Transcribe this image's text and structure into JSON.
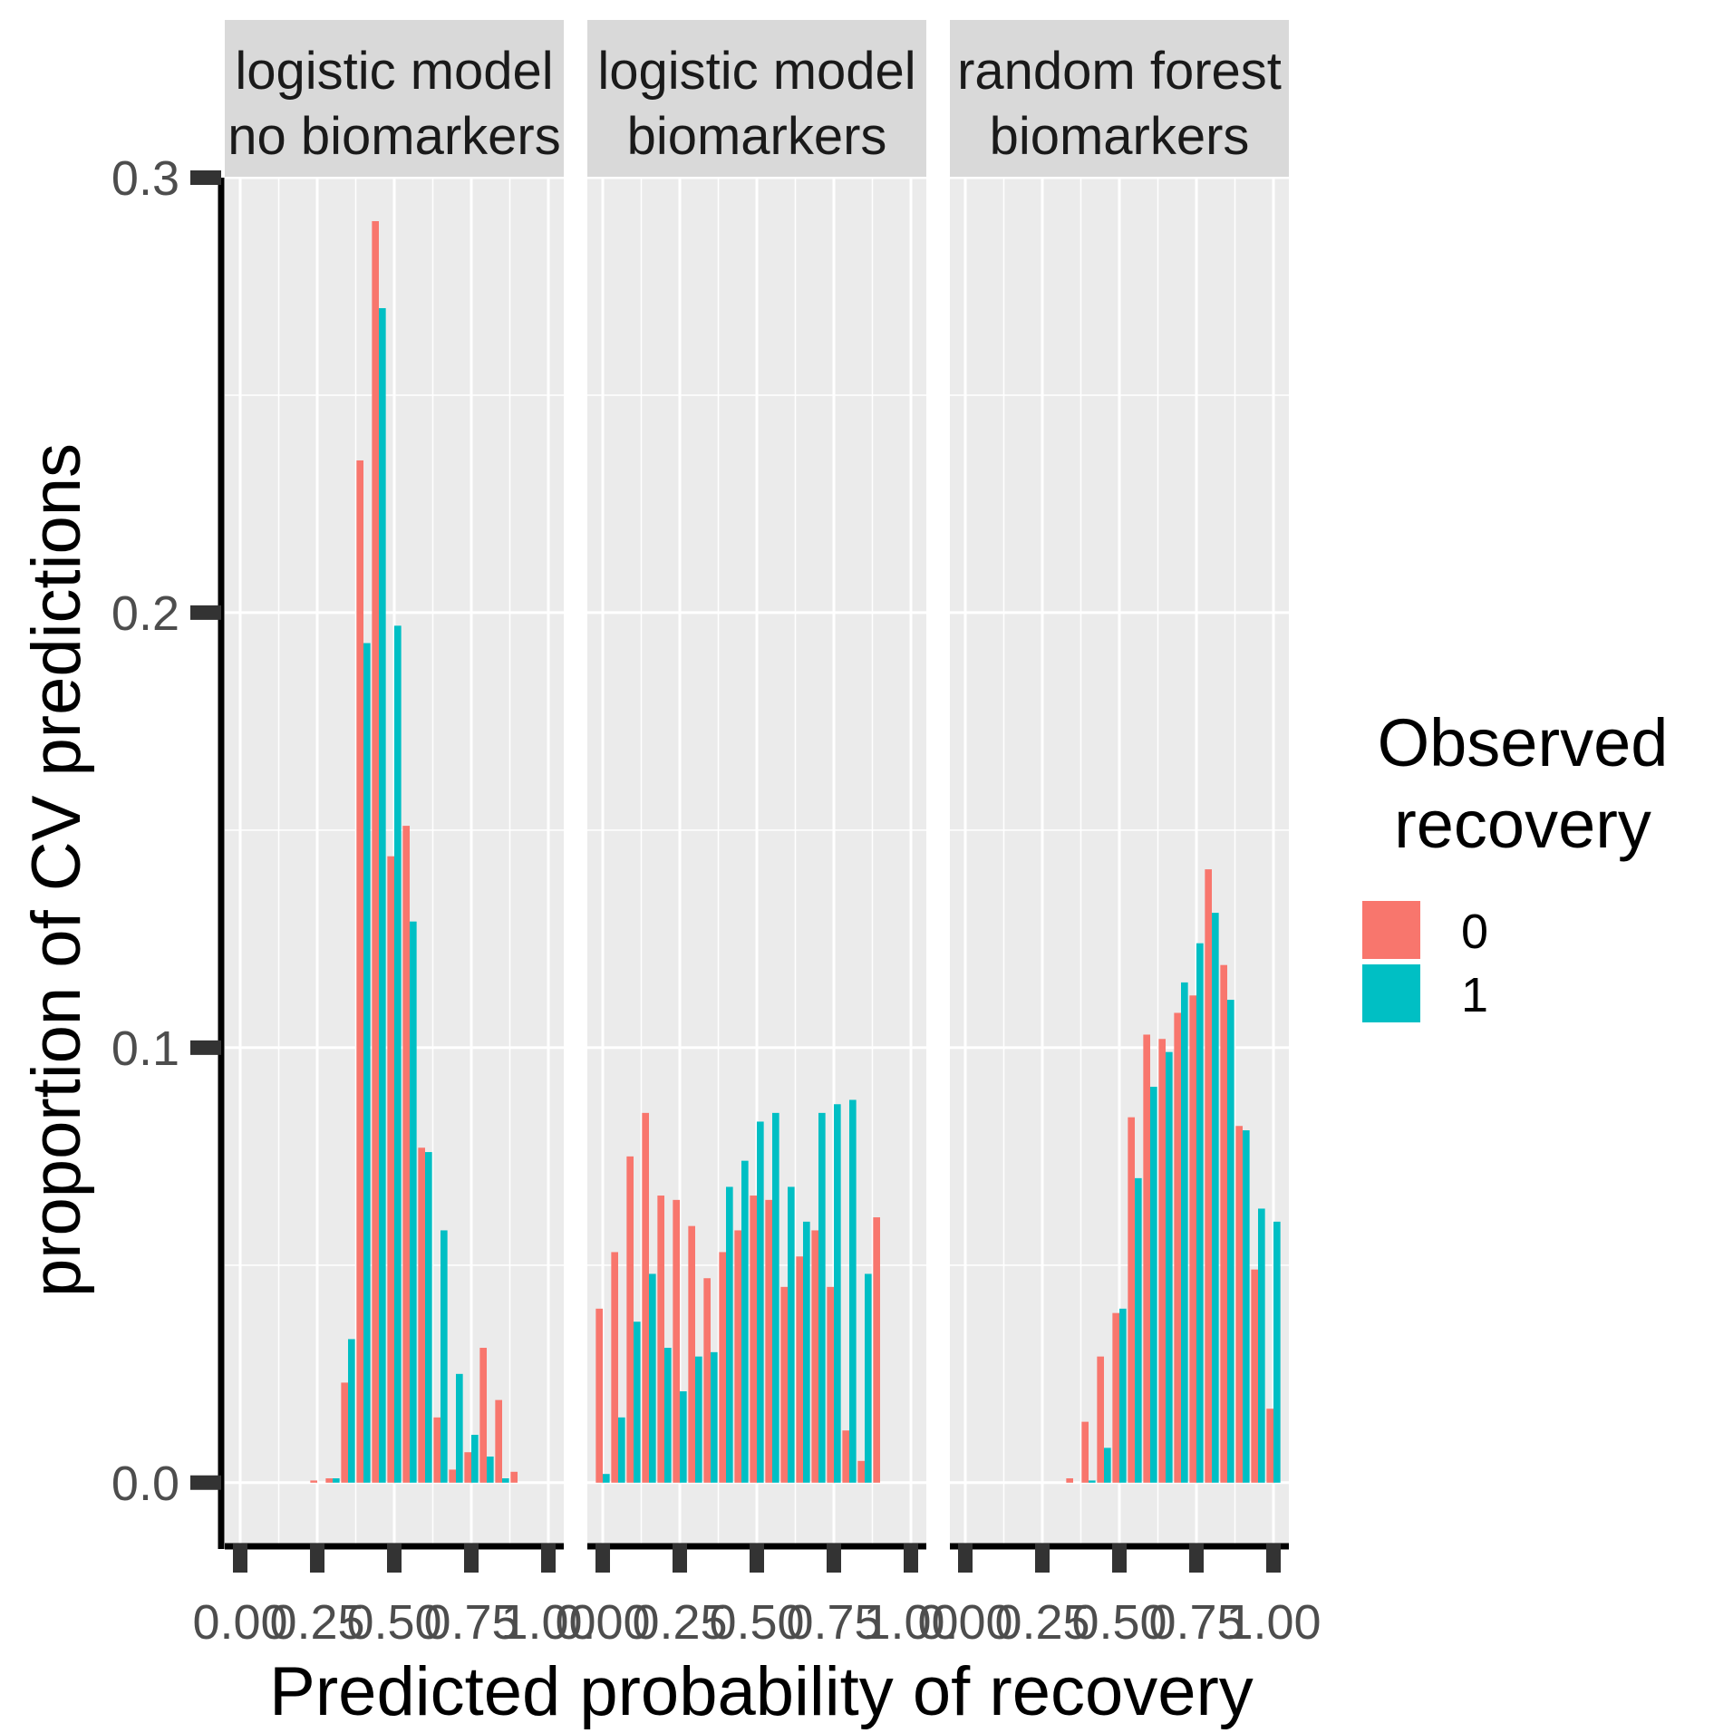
{
  "chart_data": {
    "type": "bar",
    "ylabel": "proportion of CV predictions",
    "xlabel": "Predicted probability of recovery",
    "ylim": [
      -0.014,
      0.3
    ],
    "xlim": [
      -0.05,
      1.05
    ],
    "y_ticks": [
      0.0,
      0.1,
      0.2,
      0.3
    ],
    "y_tick_labels": [
      "0.0",
      "0.1",
      "0.2",
      "0.3"
    ],
    "x_ticks": [
      0.0,
      0.25,
      0.5,
      0.75,
      1.0
    ],
    "x_tick_labels": [
      "0.00",
      "0.25",
      "0.50",
      "0.75",
      "1.00"
    ],
    "bin_centers": [
      0.0,
      0.05,
      0.1,
      0.15,
      0.2,
      0.25,
      0.3,
      0.35,
      0.4,
      0.45,
      0.5,
      0.55,
      0.6,
      0.65,
      0.7,
      0.75,
      0.8,
      0.85,
      0.9,
      0.95,
      1.0
    ],
    "grid": true,
    "legend": {
      "title_lines": [
        "Observed",
        "recovery"
      ],
      "position": "right",
      "entries": [
        {
          "label": "0",
          "color": "#F8766D"
        },
        {
          "label": "1",
          "color": "#00BFC4"
        }
      ]
    },
    "panels": [
      {
        "strip_lines": [
          "logistic model",
          "no biomarkers"
        ],
        "series": [
          {
            "name": "0",
            "color": "#F8766D",
            "values": [
              0,
              0,
              0,
              0,
              0,
              0.0005,
              0.001,
              0.023,
              0.235,
              0.29,
              0.144,
              0.151,
              0.077,
              0.015,
              0.003,
              0.007,
              0.031,
              0.019,
              0.0025,
              0,
              0
            ]
          },
          {
            "name": "1",
            "color": "#00BFC4",
            "values": [
              0,
              0,
              0,
              0,
              0,
              0,
              0.001,
              0.033,
              0.193,
              0.27,
              0.197,
              0.129,
              0.076,
              0.058,
              0.025,
              0.011,
              0.006,
              0.001,
              0,
              0,
              0
            ]
          }
        ]
      },
      {
        "strip_lines": [
          "logistic model",
          "biomarkers"
        ],
        "series": [
          {
            "name": "0",
            "color": "#F8766D",
            "values": [
              0.04,
              0.053,
              0.075,
              0.085,
              0.066,
              0.065,
              0.059,
              0.047,
              0.053,
              0.058,
              0.066,
              0.065,
              0.045,
              0.052,
              0.058,
              0.045,
              0.012,
              0.005,
              0.061,
              0,
              0
            ]
          },
          {
            "name": "1",
            "color": "#00BFC4",
            "values": [
              0.002,
              0.015,
              0.037,
              0.048,
              0.031,
              0.021,
              0.029,
              0.03,
              0.068,
              0.074,
              0.083,
              0.085,
              0.068,
              0.06,
              0.085,
              0.087,
              0.088,
              0.048,
              0,
              0,
              0
            ]
          }
        ]
      },
      {
        "strip_lines": [
          "random forest",
          "biomarkers"
        ],
        "series": [
          {
            "name": "0",
            "color": "#F8766D",
            "values": [
              0,
              0,
              0,
              0,
              0,
              0,
              0,
              0.001,
              0.014,
              0.029,
              0.039,
              0.084,
              0.103,
              0.102,
              0.108,
              0.112,
              0.141,
              0.119,
              0.082,
              0.049,
              0.017
            ]
          },
          {
            "name": "1",
            "color": "#00BFC4",
            "values": [
              0,
              0,
              0,
              0,
              0,
              0,
              0,
              0,
              0.0005,
              0.008,
              0.04,
              0.07,
              0.091,
              0.099,
              0.115,
              0.124,
              0.131,
              0.111,
              0.081,
              0.063,
              0.06
            ]
          }
        ]
      }
    ]
  }
}
